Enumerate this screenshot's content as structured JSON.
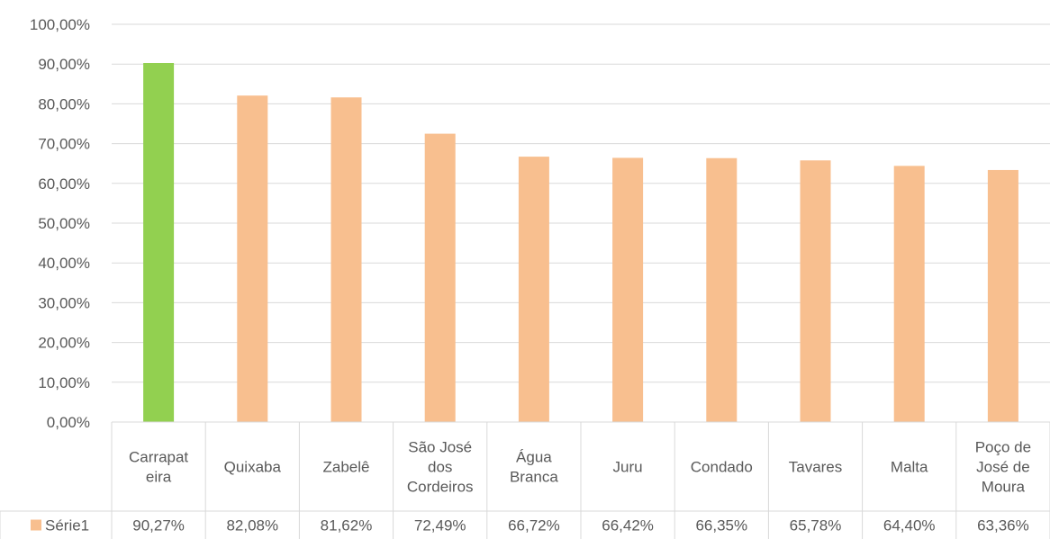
{
  "chart_data": {
    "type": "bar",
    "categories": [
      [
        "Carrapat",
        "eira"
      ],
      [
        "Quixaba"
      ],
      [
        "Zabelê"
      ],
      [
        "São José",
        "dos",
        "Cordeiros"
      ],
      [
        "Água",
        "Branca"
      ],
      [
        "Juru"
      ],
      [
        "Condado"
      ],
      [
        "Tavares"
      ],
      [
        "Malta"
      ],
      [
        "Poço de",
        "José de",
        "Moura"
      ]
    ],
    "series": [
      {
        "name": "Série1",
        "values": [
          90.27,
          82.08,
          81.62,
          72.49,
          66.72,
          66.42,
          66.35,
          65.78,
          64.4,
          63.36
        ],
        "value_labels": [
          "90,27%",
          "82,08%",
          "81,62%",
          "72,49%",
          "66,72%",
          "66,42%",
          "66,35%",
          "65,78%",
          "64,40%",
          "63,36%"
        ]
      }
    ],
    "ylim": [
      0,
      100
    ],
    "yticks": [
      "0,00%",
      "10,00%",
      "20,00%",
      "30,00%",
      "40,00%",
      "50,00%",
      "60,00%",
      "70,00%",
      "80,00%",
      "90,00%",
      "100,00%"
    ],
    "grid": true,
    "legend": "data-table",
    "colors": {
      "bar": "#f8bf8f",
      "highlight": "#92d050",
      "grid": "#d9d9d9",
      "text": "#595959"
    },
    "highlight_index": 0
  }
}
